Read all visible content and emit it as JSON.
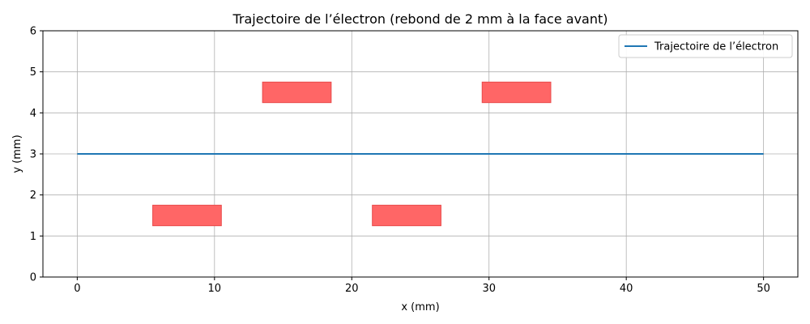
{
  "chart_data": {
    "type": "line",
    "title": "Trajectoire de l’électron (rebond de 2 mm à la face avant)",
    "xlabel": "x (mm)",
    "ylabel": "y (mm)",
    "xlim": [
      -2.5,
      52.5
    ],
    "ylim": [
      0,
      6
    ],
    "xticks": [
      0,
      10,
      20,
      30,
      40,
      50
    ],
    "yticks": [
      0,
      1,
      2,
      3,
      4,
      5,
      6
    ],
    "grid": true,
    "legend_position": "top-right",
    "series": [
      {
        "name": "Trajectoire de l’électron",
        "color": "#1f77b4",
        "x": [
          0,
          50
        ],
        "y": [
          3,
          3
        ]
      }
    ],
    "rectangles": [
      {
        "x0": 5.5,
        "x1": 10.5,
        "y0": 1.25,
        "y1": 1.75
      },
      {
        "x0": 13.5,
        "x1": 18.5,
        "y0": 4.25,
        "y1": 4.75
      },
      {
        "x0": 21.5,
        "x1": 26.5,
        "y0": 1.25,
        "y1": 1.75
      },
      {
        "x0": 29.5,
        "x1": 34.5,
        "y0": 4.25,
        "y1": 4.75
      }
    ],
    "rect_fill": "#ff6666",
    "rect_stroke": "#e84a4a"
  }
}
